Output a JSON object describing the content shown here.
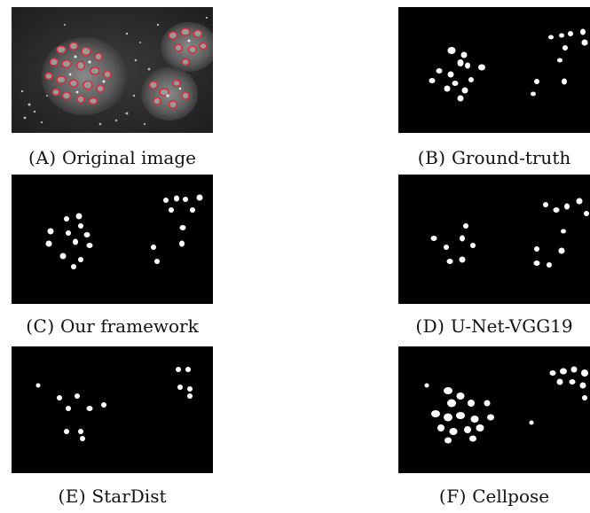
{
  "figure": {
    "panels": [
      {
        "label": "(A)",
        "caption": "Original image"
      },
      {
        "label": "(B)",
        "caption": "Ground-truth"
      },
      {
        "label": "(C)",
        "caption": "Our framework"
      },
      {
        "label": "(D)",
        "caption": "U-Net-VGG19"
      },
      {
        "label": "(E)",
        "caption": "StarDist"
      },
      {
        "label": "(F)",
        "caption": "Cellpose"
      }
    ]
  },
  "colors": {
    "mask_background": "#000000",
    "mask_foreground": "#ffffff",
    "nucleus_outline": "#d0303a"
  }
}
